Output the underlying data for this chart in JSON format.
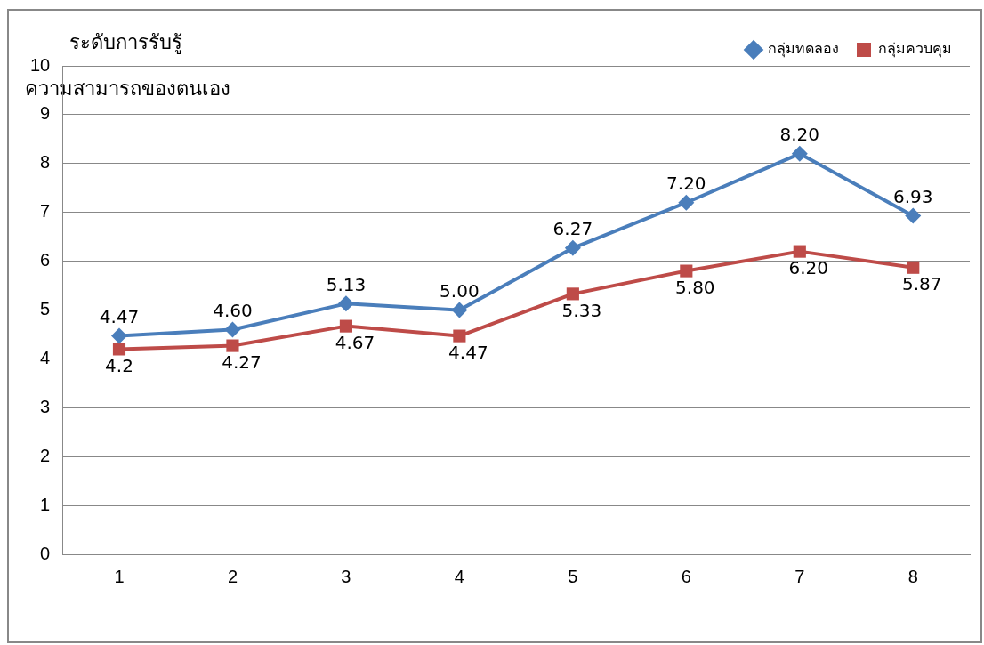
{
  "chart_data": {
    "type": "line",
    "title": "ระดับการรับรู้",
    "ylabel": "ความสามารถของตนเอง",
    "categories": [
      "1",
      "2",
      "3",
      "4",
      "5",
      "6",
      "7",
      "8"
    ],
    "series": [
      {
        "name": "กลุ่มทดลอง",
        "color": "#4a7ebb",
        "marker": "diamond",
        "values": [
          4.47,
          4.6,
          5.13,
          5.0,
          6.27,
          7.2,
          8.2,
          6.93
        ],
        "value_labels": [
          "4.47",
          "4.60",
          "5.13",
          "5.00",
          "6.27",
          "7.20",
          "8.20",
          "6.93"
        ]
      },
      {
        "name": "กลุ่มควบคุม",
        "color": "#be4b48",
        "marker": "square",
        "values": [
          4.2,
          4.27,
          4.67,
          4.47,
          5.33,
          5.8,
          6.2,
          5.87
        ],
        "value_labels": [
          "4.2",
          "4.27",
          "4.67",
          "4.47",
          "5.33",
          "5.80",
          "6.20",
          "5.87"
        ]
      }
    ],
    "ylim": [
      0,
      10
    ],
    "yticks": [
      0,
      1,
      2,
      3,
      4,
      5,
      6,
      7,
      8,
      9,
      10
    ],
    "grid": "y",
    "legend": "top right",
    "line_style": "solid"
  }
}
